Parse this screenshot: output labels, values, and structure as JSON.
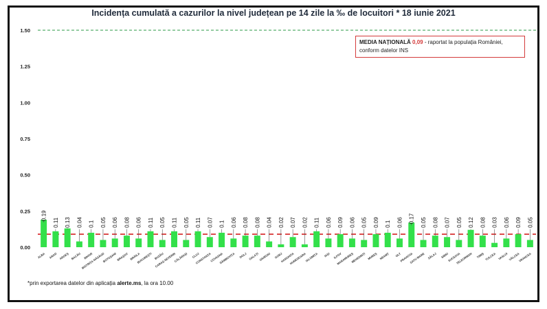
{
  "chart_data": {
    "type": "bar",
    "title": "Incidența cumulată a cazurilor la nivel județean pe 14 zile la ‰ de locuitori * 18 iunie 2021",
    "ylim": [
      0,
      1.5
    ],
    "yticks": [
      "0.00",
      "0.25",
      "0.50",
      "0.75",
      "1.00",
      "1.25",
      "1.50"
    ],
    "grid": false,
    "categories": [
      "ALBA",
      "ARAD",
      "ARGEȘ",
      "BACĂU",
      "BIHOR",
      "BISTRIȚA-NĂSĂUD",
      "BOTOȘANI",
      "BRAȘOV",
      "BRĂILA",
      "BUCUREȘTI",
      "BUZĂU",
      "CARAȘ-SEVERIN",
      "CĂLĂRAȘI",
      "CLUJ",
      "CONSTANȚA",
      "COVASNA",
      "DÂMBOVIȚA",
      "DOLJ",
      "GALAȚI",
      "GIURGIU",
      "GORJ",
      "HARGHITA",
      "HUNEDOARA",
      "IALOMIȚA",
      "IAȘI",
      "ILFOV",
      "MARAMUREȘ",
      "MEHEDINȚI",
      "MUREȘ",
      "NEAMȚ",
      "OLT",
      "PRAHOVA",
      "SATU MARE",
      "SĂLAJ",
      "SIBIU",
      "SUCEAVA",
      "TELEORMAN",
      "TIMIȘ",
      "TULCEA",
      "VASLUI",
      "VÂLCEA",
      "VRANCEA"
    ],
    "values": [
      0.19,
      0.11,
      0.13,
      0.04,
      0.1,
      0.05,
      0.06,
      0.08,
      0.06,
      0.11,
      0.05,
      0.11,
      0.05,
      0.11,
      0.07,
      0.1,
      0.06,
      0.08,
      0.08,
      0.04,
      0.02,
      0.07,
      0.02,
      0.11,
      0.06,
      0.09,
      0.06,
      0.05,
      0.09,
      0.1,
      0.06,
      0.17,
      0.05,
      0.08,
      0.07,
      0.05,
      0.12,
      0.08,
      0.03,
      0.06,
      0.09,
      0.05
    ],
    "value_labels": [
      "0.19",
      "0.11",
      "0.13",
      "0.04",
      "0.1",
      "0.05",
      "0.06",
      "0.08",
      "0.06",
      "0.11",
      "0.05",
      "0.11",
      "0.05",
      "0.11",
      "0.07",
      "0.1",
      "0.06",
      "0.08",
      "0.08",
      "0.04",
      "0.02",
      "0.07",
      "0.02",
      "0.11",
      "0.06",
      "0.09",
      "0.06",
      "0.05",
      "0.09",
      "0.1",
      "0.06",
      "0.17",
      "0.05",
      "0.08",
      "0.07",
      "0.05",
      "0.12",
      "0.08",
      "0.03",
      "0.06",
      "0.09",
      "0.05"
    ],
    "bar_color": "#33e04a",
    "reference_lines": [
      {
        "value": 1.5,
        "color": "#2a9a45",
        "style": "dashed"
      },
      {
        "value": 0.09,
        "color": "#d42020",
        "style": "dashed"
      }
    ]
  },
  "legend": {
    "title": "MEDIA NAȚIONALĂ",
    "value": "0,09",
    "rest": "- raportat la populația României,",
    "line2": "conform datelor INS"
  },
  "footnote": {
    "prefix": "*prin exportarea datelor din aplicația",
    "source": "alerte.ms",
    "suffix": ", la ora 10.00"
  }
}
